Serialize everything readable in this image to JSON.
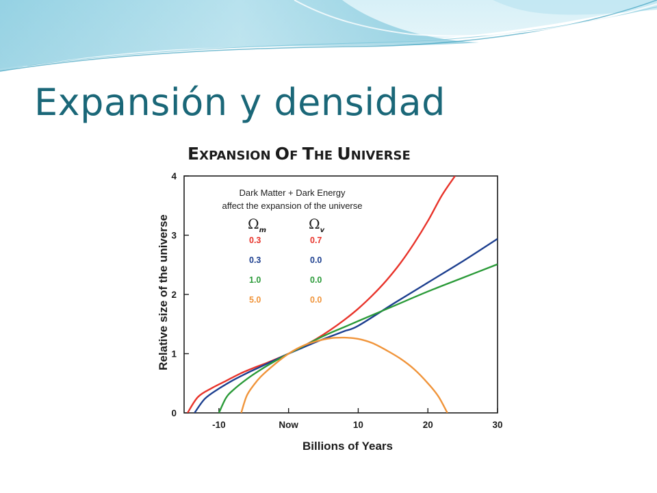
{
  "slide": {
    "title": "Expansión y densidad",
    "theme_colors": {
      "title": "#1a6778",
      "wave_dark": "#3aa0bd",
      "wave_light": "#bfe6f1"
    }
  },
  "chart_data": {
    "type": "line",
    "title": "Expansion of the Universe",
    "xlabel": "Billions of Years",
    "ylabel": "Relative size of the universe",
    "xlim": [
      -15,
      30
    ],
    "ylim": [
      0,
      4
    ],
    "x_ticks": [
      {
        "value": -10,
        "label": "-10"
      },
      {
        "value": 0,
        "label": "Now"
      },
      {
        "value": 10,
        "label": "10"
      },
      {
        "value": 20,
        "label": "20"
      },
      {
        "value": 30,
        "label": "30"
      }
    ],
    "y_ticks": [
      {
        "value": 0,
        "label": "0"
      },
      {
        "value": 1,
        "label": "1"
      },
      {
        "value": 2,
        "label": "2"
      },
      {
        "value": 3,
        "label": "3"
      },
      {
        "value": 4,
        "label": "4"
      }
    ],
    "grid": false,
    "annotation": [
      "Dark Matter + Dark Energy",
      "affect the expansion of the universe"
    ],
    "parameter_headers": [
      "Ωm",
      "Ωv"
    ],
    "series": [
      {
        "omega_m": "0.3",
        "omega_v": "0.7",
        "color": "#e8332a",
        "x": [
          -14.5,
          -13,
          -11,
          -9,
          -7,
          -5,
          -3,
          0,
          2,
          4,
          6,
          8,
          10,
          12,
          14,
          16,
          18,
          20,
          22,
          23.9
        ],
        "y": [
          0,
          0.27,
          0.42,
          0.54,
          0.66,
          0.76,
          0.85,
          1.0,
          1.12,
          1.25,
          1.4,
          1.57,
          1.76,
          1.98,
          2.23,
          2.52,
          2.86,
          3.24,
          3.67,
          4.0
        ]
      },
      {
        "omega_m": "0.3",
        "omega_v": "0.0",
        "color": "#1d3f8f",
        "x": [
          -13.5,
          -12,
          -10,
          -8,
          -6,
          -4,
          -2,
          0,
          2,
          4,
          6,
          8,
          10,
          15,
          20,
          25,
          30
        ],
        "y": [
          0,
          0.24,
          0.41,
          0.55,
          0.67,
          0.78,
          0.89,
          1.0,
          1.1,
          1.2,
          1.29,
          1.38,
          1.47,
          1.84,
          2.2,
          2.56,
          2.94
        ]
      },
      {
        "omega_m": "1.0",
        "omega_v": "0.0",
        "color": "#2a9a38",
        "x": [
          -10,
          -9,
          -8,
          -6,
          -4,
          -2,
          0,
          2,
          4,
          6,
          8,
          10,
          15,
          20,
          25,
          30
        ],
        "y": [
          0,
          0.25,
          0.38,
          0.57,
          0.73,
          0.87,
          1.0,
          1.12,
          1.24,
          1.35,
          1.45,
          1.55,
          1.8,
          2.05,
          2.28,
          2.51
        ]
      },
      {
        "omega_m": "5.0",
        "omega_v": "0.0",
        "color": "#f0943a",
        "x": [
          -6.8,
          -6,
          -5,
          -4,
          -2,
          0,
          2,
          4,
          6,
          8,
          10,
          12,
          14,
          16,
          18,
          20,
          21.5,
          22.8
        ],
        "y": [
          0,
          0.29,
          0.47,
          0.61,
          0.82,
          1.0,
          1.13,
          1.21,
          1.26,
          1.27,
          1.25,
          1.18,
          1.06,
          0.92,
          0.74,
          0.5,
          0.28,
          0
        ]
      }
    ]
  }
}
